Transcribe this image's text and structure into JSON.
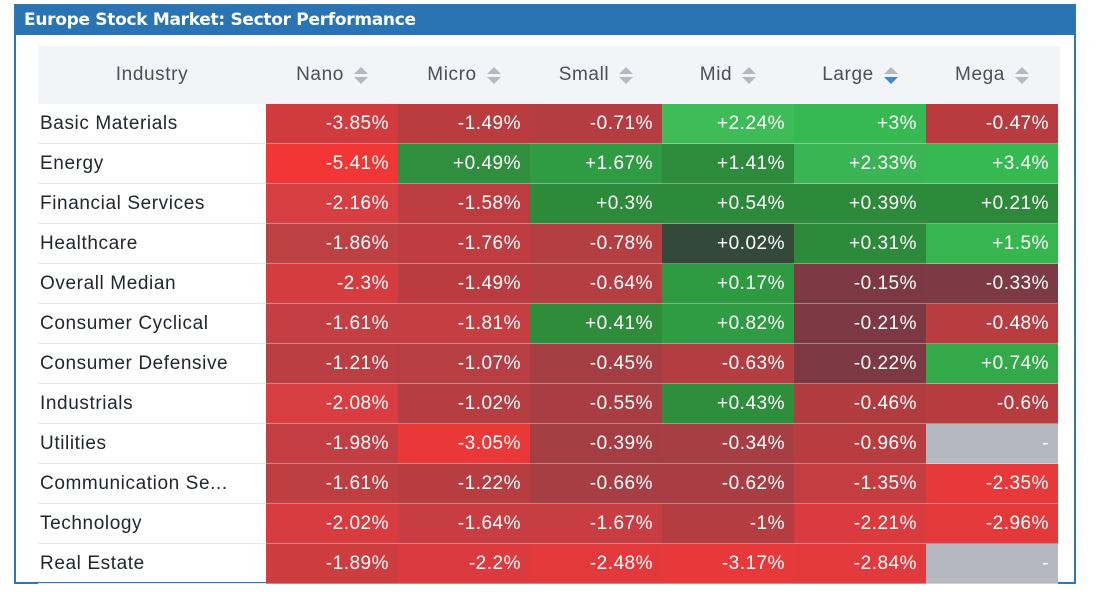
{
  "title": "Europe Stock Market: Sector Performance",
  "header": {
    "industry_label": "Industry",
    "columns": [
      "Nano",
      "Micro",
      "Small",
      "Mid",
      "Large",
      "Mega"
    ],
    "sorted_column": "Large"
  },
  "rows": [
    {
      "name": "Basic Materials",
      "values": [
        "-3.85%",
        "-1.49%",
        "-0.71%",
        "+2.24%",
        "+3%",
        "-0.47%"
      ]
    },
    {
      "name": "Energy",
      "values": [
        "-5.41%",
        "+0.49%",
        "+1.67%",
        "+1.41%",
        "+2.33%",
        "+3.4%"
      ]
    },
    {
      "name": "Financial Services",
      "values": [
        "-2.16%",
        "-1.58%",
        "+0.3%",
        "+0.54%",
        "+0.39%",
        "+0.21%"
      ]
    },
    {
      "name": "Healthcare",
      "values": [
        "-1.86%",
        "-1.76%",
        "-0.78%",
        "+0.02%",
        "+0.31%",
        "+1.5%"
      ]
    },
    {
      "name": "Overall Median",
      "values": [
        "-2.3%",
        "-1.49%",
        "-0.64%",
        "+0.17%",
        "-0.15%",
        "-0.33%"
      ]
    },
    {
      "name": "Consumer Cyclical",
      "values": [
        "-1.61%",
        "-1.81%",
        "+0.41%",
        "+0.82%",
        "-0.21%",
        "-0.48%"
      ]
    },
    {
      "name": "Consumer Defensive",
      "values": [
        "-1.21%",
        "-1.07%",
        "-0.45%",
        "-0.63%",
        "-0.22%",
        "+0.74%"
      ]
    },
    {
      "name": "Industrials",
      "values": [
        "-2.08%",
        "-1.02%",
        "-0.55%",
        "+0.43%",
        "-0.46%",
        "-0.6%"
      ]
    },
    {
      "name": "Utilities",
      "values": [
        "-1.98%",
        "-3.05%",
        "-0.39%",
        "-0.34%",
        "-0.96%",
        "-"
      ]
    },
    {
      "name": "Communication Se...",
      "values": [
        "-1.61%",
        "-1.22%",
        "-0.66%",
        "-0.62%",
        "-1.35%",
        "-2.35%"
      ]
    },
    {
      "name": "Technology",
      "values": [
        "-2.02%",
        "-1.64%",
        "-1.67%",
        "-1%",
        "-2.21%",
        "-2.96%"
      ]
    },
    {
      "name": "Real Estate",
      "values": [
        "-1.89%",
        "-2.2%",
        "-2.48%",
        "-3.17%",
        "-2.84%",
        "-"
      ]
    }
  ],
  "colors": {
    "cells": [
      [
        "#d13b3e",
        "#b93c3f",
        "#b43d41",
        "#3fbb57",
        "#36b951",
        "#b83b3f"
      ],
      [
        "#f23636",
        "#2f8f3f",
        "#2f9b43",
        "#2d8c3b",
        "#3ab454",
        "#36b951"
      ],
      [
        "#d63e42",
        "#bd3c40",
        "#2e8a3b",
        "#2c8a3a",
        "#2c8a3a",
        "#2d8a3a"
      ],
      [
        "#bd4043",
        "#bf3d41",
        "#b43f42",
        "#334a3a",
        "#2c8a3a",
        "#37b650"
      ],
      [
        "#d53c3f",
        "#bb3c40",
        "#b33f42",
        "#2e9a42",
        "#7c3943",
        "#7b3a44"
      ],
      [
        "#c33f43",
        "#c53e42",
        "#2e8c3b",
        "#2f9b43",
        "#7c3943",
        "#b73d41"
      ],
      [
        "#ba3e42",
        "#b73e42",
        "#a43e43",
        "#b33e42",
        "#7d3943",
        "#33a949"
      ],
      [
        "#d83e41",
        "#b63d41",
        "#a83e43",
        "#2e8e3b",
        "#b03c40",
        "#b63c40"
      ],
      [
        "#c23e42",
        "#ea3838",
        "#a43e43",
        "#a63e43",
        "#b73d41",
        "#b5b8c0"
      ],
      [
        "#bf3e42",
        "#b83d41",
        "#a63e43",
        "#a83e43",
        "#c43d40",
        "#e7393a"
      ],
      [
        "#d83c3f",
        "#c83d41",
        "#c83d41",
        "#b43d41",
        "#d93b3e",
        "#e3393b"
      ],
      [
        "#cd3d40",
        "#db3b3e",
        "#e1393c",
        "#e8393a",
        "#e23a3c",
        "#b5b8c0"
      ]
    ]
  }
}
